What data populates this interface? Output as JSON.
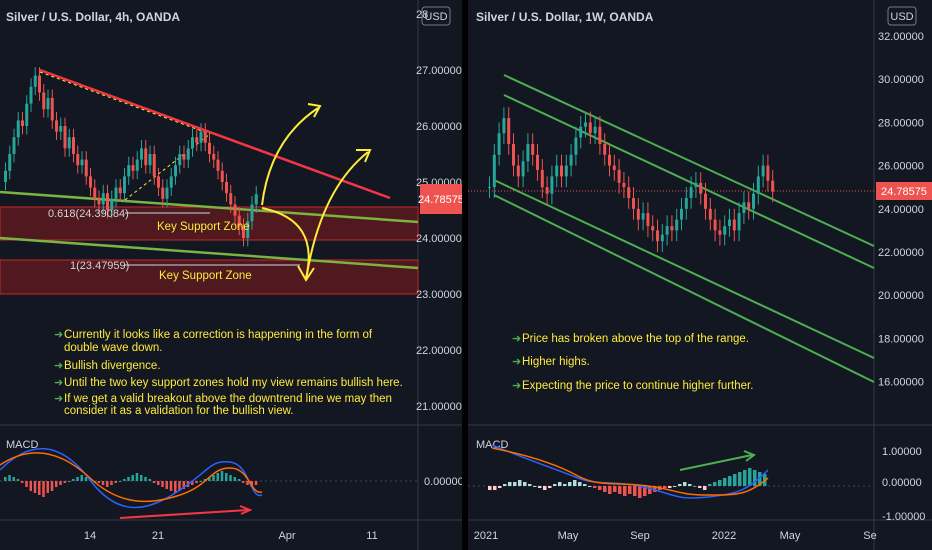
{
  "chart_data": [
    {
      "type": "candlestick",
      "title": "Silver / U.S. Dollar, 4h, OANDA",
      "currency": "USD",
      "price_label": "24.78575",
      "price_value": 24.78575,
      "y_ticks": [
        "21.00000",
        "22.00000",
        "23.00000",
        "24.00000",
        "25.00000",
        "26.00000",
        "27.00000",
        "28"
      ],
      "y_tick_values": [
        21,
        22,
        23,
        24,
        25,
        26,
        27,
        28
      ],
      "x_ticks": [
        "14",
        "21",
        "Apr",
        "11"
      ],
      "fib_levels": [
        {
          "label": "0.618(24.39084)",
          "value": 24.39084
        },
        {
          "label": "1(23.47959)",
          "value": 23.47959
        }
      ],
      "zones": [
        {
          "label": "Key Support Zone",
          "top": 24.2,
          "bottom": 23.9
        },
        {
          "label": "Key Support Zone",
          "top": 23.5,
          "bottom": 23.05
        }
      ],
      "notes": [
        "Currently it looks like a correction is happening in the form of",
        "double wave down.",
        "Bullish divergence.",
        "Until the two key support zones hold my view remains bullish here.",
        "If we get a valid breakout above the downtrend line we may then",
        "consider it as a validation for the bullish view."
      ],
      "macd_label": "MACD",
      "macd_tick": "0.00000"
    },
    {
      "type": "candlestick",
      "title": "Silver / U.S. Dollar, 1W, OANDA",
      "currency": "USD",
      "price_label": "24.78575",
      "price_value": 24.78575,
      "y_ticks": [
        "32.00000",
        "30.00000",
        "28.00000",
        "26.00000",
        "24.00000",
        "22.00000",
        "20.00000",
        "18.00000",
        "16.00000"
      ],
      "y_tick_values": [
        32,
        30,
        28,
        26,
        24,
        22,
        20,
        18,
        16
      ],
      "x_ticks": [
        "2021",
        "May",
        "Sep",
        "2022",
        "May",
        "Se"
      ],
      "notes": [
        "Price has broken above the top of the range.",
        "Higher highs.",
        "Expecting the price to continue higher further."
      ],
      "macd_label": "MACD",
      "macd_ticks": [
        "1.00000",
        "0.00000",
        "-1.00000"
      ]
    }
  ],
  "colors": {
    "bg": "#131722",
    "up": "#26a69a",
    "down": "#ef5350",
    "trend_red": "#f23645",
    "channel_green": "#4caf50",
    "arrow": "#ffeb3b",
    "zone": "#7b1f24",
    "macd_line": "#2962ff",
    "signal_line": "#ff6d00"
  }
}
